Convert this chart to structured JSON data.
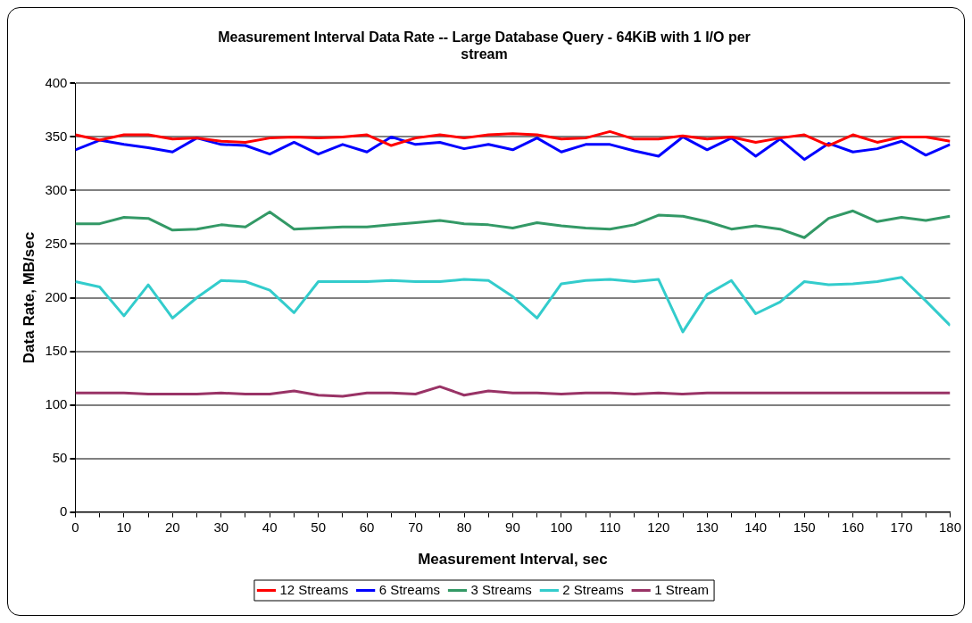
{
  "chart_data": {
    "type": "line",
    "title": "Measurement Interval Data Rate -- Large Database Query - 64KiB with 1 I/O per stream",
    "xlabel": "Measurement Interval, sec",
    "ylabel": "Data Rate, MB/sec",
    "x": [
      0,
      5,
      10,
      15,
      20,
      25,
      30,
      35,
      40,
      45,
      50,
      55,
      60,
      65,
      70,
      75,
      80,
      85,
      90,
      95,
      100,
      105,
      110,
      115,
      120,
      125,
      130,
      135,
      140,
      145,
      150,
      155,
      160,
      165,
      170,
      175,
      180
    ],
    "xlim": [
      0,
      180
    ],
    "xticks": [
      0,
      {
        "value": 5,
        "label": null
      },
      10,
      {
        "value": 15,
        "label": null
      },
      20,
      {
        "value": 25,
        "label": null
      },
      30,
      {
        "value": 35,
        "label": null
      },
      40,
      {
        "value": 45,
        "label": null
      },
      50,
      {
        "value": 55,
        "label": null
      },
      60,
      {
        "value": 65,
        "label": null
      },
      70,
      {
        "value": 75,
        "label": null
      },
      80,
      {
        "value": 85,
        "label": null
      },
      90,
      {
        "value": 95,
        "label": null
      },
      100,
      {
        "value": 105,
        "label": null
      },
      110,
      {
        "value": 115,
        "label": null
      },
      120,
      {
        "value": 125,
        "label": null
      },
      130,
      {
        "value": 135,
        "label": null
      },
      140,
      {
        "value": 145,
        "label": null
      },
      150,
      {
        "value": 155,
        "label": null
      },
      160,
      {
        "value": 165,
        "label": null
      },
      170,
      {
        "value": 175,
        "label": null
      },
      180
    ],
    "ylim": [
      0,
      400
    ],
    "yticks": [
      0,
      50,
      100,
      150,
      200,
      250,
      300,
      350,
      400
    ],
    "grid": "y",
    "legend": "bottom",
    "marker": "none",
    "line_style": "solid",
    "series": [
      {
        "name": "12 Streams",
        "color": "#ff0000",
        "values": [
          352,
          347,
          352,
          352,
          348,
          349,
          346,
          345,
          349,
          350,
          349,
          350,
          352,
          342,
          349,
          352,
          349,
          352,
          353,
          352,
          348,
          349,
          355,
          348,
          348,
          351,
          348,
          350,
          345,
          349,
          352,
          342,
          352,
          345,
          350,
          350,
          346
        ]
      },
      {
        "name": "6 Streams",
        "color": "#0000ff",
        "values": [
          338,
          347,
          343,
          340,
          336,
          349,
          343,
          342,
          334,
          345,
          334,
          343,
          336,
          350,
          343,
          345,
          339,
          343,
          338,
          349,
          336,
          343,
          343,
          337,
          332,
          350,
          338,
          349,
          332,
          348,
          329,
          344,
          336,
          339,
          346,
          333,
          343
        ]
      },
      {
        "name": "3 Streams",
        "color": "#339966",
        "values": [
          269,
          269,
          275,
          274,
          263,
          264,
          268,
          266,
          280,
          264,
          265,
          266,
          266,
          268,
          270,
          272,
          269,
          268,
          265,
          270,
          267,
          265,
          264,
          268,
          277,
          276,
          271,
          264,
          267,
          264,
          256,
          274,
          281,
          271,
          275,
          272,
          276
        ]
      },
      {
        "name": "2 Streams",
        "color": "#33cccc",
        "values": [
          215,
          210,
          183,
          212,
          181,
          200,
          216,
          215,
          207,
          186,
          215,
          215,
          215,
          216,
          215,
          215,
          217,
          216,
          201,
          181,
          213,
          216,
          217,
          215,
          217,
          168,
          203,
          216,
          185,
          196,
          215,
          212,
          213,
          215,
          219,
          197,
          174
        ]
      },
      {
        "name": "1 Stream",
        "color": "#993366",
        "values": [
          111,
          111,
          111,
          110,
          110,
          110,
          111,
          110,
          110,
          113,
          109,
          108,
          111,
          111,
          110,
          117,
          109,
          113,
          111,
          111,
          110,
          111,
          111,
          110,
          111,
          110,
          111,
          111,
          111,
          111,
          111,
          111,
          111,
          111,
          111,
          111,
          111
        ]
      }
    ]
  }
}
